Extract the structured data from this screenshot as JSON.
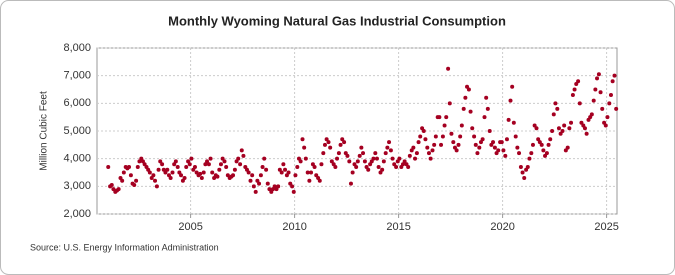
{
  "chart_data": {
    "type": "scatter",
    "title": "Monthly Wyoming Natural Gas Industrial Consumption",
    "y_label": "Million Cubic Feet",
    "source": "Source: U.S. Energy Information Administration",
    "color": "#a50021",
    "grid": true,
    "xlim": [
      2000.5,
      2025.5
    ],
    "xticks": [
      2005,
      2010,
      2015,
      2020,
      2025
    ],
    "ylim": [
      2000,
      8000
    ],
    "yticks": [
      {
        "value": 2000,
        "label": "2,000"
      },
      {
        "value": 3000,
        "label": "3,000"
      },
      {
        "value": 4000,
        "label": "4,000"
      },
      {
        "value": 5000,
        "label": "5,000"
      },
      {
        "value": 6000,
        "label": "6,000"
      },
      {
        "value": 7000,
        "label": "7,000"
      },
      {
        "value": 8000,
        "label": "8,000"
      }
    ],
    "x": [
      2001.04,
      2001.13,
      2001.21,
      2001.29,
      2001.38,
      2001.46,
      2001.54,
      2001.63,
      2001.71,
      2001.79,
      2001.88,
      2001.96,
      2002.04,
      2002.13,
      2002.21,
      2002.29,
      2002.38,
      2002.46,
      2002.54,
      2002.63,
      2002.71,
      2002.79,
      2002.88,
      2002.96,
      2003.04,
      2003.13,
      2003.21,
      2003.29,
      2003.38,
      2003.46,
      2003.54,
      2003.63,
      2003.71,
      2003.79,
      2003.88,
      2003.96,
      2004.04,
      2004.13,
      2004.21,
      2004.29,
      2004.38,
      2004.46,
      2004.54,
      2004.63,
      2004.71,
      2004.79,
      2004.88,
      2004.96,
      2005.04,
      2005.13,
      2005.21,
      2005.29,
      2005.38,
      2005.46,
      2005.54,
      2005.63,
      2005.71,
      2005.79,
      2005.88,
      2005.96,
      2006.04,
      2006.13,
      2006.21,
      2006.29,
      2006.38,
      2006.46,
      2006.54,
      2006.63,
      2006.71,
      2006.79,
      2006.88,
      2006.96,
      2007.04,
      2007.13,
      2007.21,
      2007.29,
      2007.38,
      2007.46,
      2007.54,
      2007.63,
      2007.71,
      2007.79,
      2007.88,
      2007.96,
      2008.04,
      2008.13,
      2008.21,
      2008.29,
      2008.38,
      2008.46,
      2008.54,
      2008.63,
      2008.71,
      2008.79,
      2008.88,
      2008.96,
      2009.04,
      2009.13,
      2009.21,
      2009.29,
      2009.38,
      2009.46,
      2009.54,
      2009.63,
      2009.71,
      2009.79,
      2009.88,
      2009.96,
      2010.04,
      2010.13,
      2010.21,
      2010.29,
      2010.38,
      2010.46,
      2010.54,
      2010.63,
      2010.71,
      2010.79,
      2010.88,
      2010.96,
      2011.04,
      2011.13,
      2011.21,
      2011.29,
      2011.38,
      2011.46,
      2011.54,
      2011.63,
      2011.71,
      2011.79,
      2011.88,
      2011.96,
      2012.04,
      2012.13,
      2012.21,
      2012.29,
      2012.38,
      2012.46,
      2012.54,
      2012.63,
      2012.71,
      2012.79,
      2012.88,
      2012.96,
      2013.04,
      2013.13,
      2013.21,
      2013.29,
      2013.38,
      2013.46,
      2013.54,
      2013.63,
      2013.71,
      2013.79,
      2013.88,
      2013.96,
      2014.04,
      2014.13,
      2014.21,
      2014.29,
      2014.38,
      2014.46,
      2014.54,
      2014.63,
      2014.71,
      2014.79,
      2014.88,
      2014.96,
      2015.04,
      2015.13,
      2015.21,
      2015.29,
      2015.38,
      2015.46,
      2015.54,
      2015.63,
      2015.71,
      2015.79,
      2015.88,
      2015.96,
      2016.04,
      2016.13,
      2016.21,
      2016.29,
      2016.38,
      2016.46,
      2016.54,
      2016.63,
      2016.71,
      2016.79,
      2016.88,
      2016.96,
      2017.04,
      2017.13,
      2017.21,
      2017.29,
      2017.38,
      2017.46,
      2017.54,
      2017.63,
      2017.71,
      2017.79,
      2017.88,
      2017.96,
      2018.04,
      2018.13,
      2018.21,
      2018.29,
      2018.38,
      2018.46,
      2018.54,
      2018.63,
      2018.71,
      2018.79,
      2018.88,
      2018.96,
      2019.04,
      2019.13,
      2019.21,
      2019.29,
      2019.38,
      2019.46,
      2019.54,
      2019.63,
      2019.71,
      2019.79,
      2019.88,
      2019.96,
      2020.04,
      2020.13,
      2020.21,
      2020.29,
      2020.38,
      2020.46,
      2020.54,
      2020.63,
      2020.71,
      2020.79,
      2020.88,
      2020.96,
      2021.04,
      2021.13,
      2021.21,
      2021.29,
      2021.38,
      2021.46,
      2021.54,
      2021.63,
      2021.71,
      2021.79,
      2021.88,
      2021.96,
      2022.04,
      2022.13,
      2022.21,
      2022.29,
      2022.38,
      2022.46,
      2022.54,
      2022.63,
      2022.71,
      2022.79,
      2022.88,
      2022.96,
      2023.04,
      2023.13,
      2023.21,
      2023.29,
      2023.38,
      2023.46,
      2023.54,
      2023.63,
      2023.71,
      2023.79,
      2023.88,
      2023.96,
      2024.04,
      2024.13,
      2024.21,
      2024.29,
      2024.38,
      2024.46,
      2024.54,
      2024.63,
      2024.71,
      2024.79,
      2024.88,
      2024.96,
      2025.04,
      2025.13,
      2025.21,
      2025.29,
      2025.38,
      2025.46
    ],
    "values": [
      3700,
      3000,
      3050,
      2900,
      2800,
      2850,
      2900,
      3300,
      3200,
      3500,
      3700,
      3650,
      3700,
      3400,
      3100,
      3050,
      3200,
      3700,
      3900,
      4000,
      3900,
      3800,
      3700,
      3600,
      3500,
      3300,
      3400,
      3200,
      3000,
      3600,
      3900,
      3800,
      3600,
      3500,
      3600,
      3400,
      3300,
      3500,
      3800,
      3900,
      3700,
      3500,
      3400,
      3200,
      3300,
      3700,
      3900,
      3800,
      4000,
      3600,
      3700,
      3500,
      3400,
      3450,
      3300,
      3500,
      3800,
      3900,
      3800,
      4000,
      3500,
      3300,
      3400,
      3350,
      3600,
      3800,
      4000,
      3900,
      3700,
      3400,
      3300,
      3350,
      3400,
      3600,
      3900,
      4000,
      3800,
      4300,
      4100,
      3700,
      3600,
      3500,
      3200,
      3400,
      3000,
      2800,
      3200,
      3100,
      3400,
      3700,
      4000,
      3600,
      3100,
      2900,
      2800,
      2900,
      3000,
      2900,
      3000,
      3600,
      3500,
      3800,
      3600,
      3400,
      3500,
      3100,
      3000,
      2800,
      3400,
      3700,
      4000,
      3900,
      4700,
      4400,
      4000,
      3500,
      3200,
      3500,
      3800,
      3700,
      3400,
      3300,
      3200,
      3800,
      4200,
      4500,
      4700,
      4600,
      4400,
      3900,
      3800,
      3700,
      4000,
      4200,
      4500,
      4700,
      4600,
      4200,
      4100,
      3900,
      3100,
      3500,
      3800,
      3700,
      3900,
      4100,
      4400,
      4200,
      3900,
      3700,
      3600,
      3800,
      3900,
      4000,
      4200,
      4000,
      3700,
      3500,
      3600,
      3900,
      4200,
      4400,
      4600,
      4300,
      4000,
      3800,
      3700,
      3900,
      4000,
      3700,
      3800,
      3900,
      3800,
      3700,
      4100,
      4300,
      4400,
      4000,
      4200,
      4600,
      4800,
      5100,
      5000,
      4700,
      4400,
      4200,
      4000,
      4300,
      4500,
      4800,
      5500,
      5500,
      4500,
      4800,
      5200,
      5500,
      7250,
      6000,
      4900,
      4600,
      4400,
      4300,
      4500,
      4800,
      5200,
      5800,
      6200,
      6600,
      6500,
      5700,
      5100,
      4800,
      4500,
      4200,
      4400,
      4600,
      4700,
      5500,
      6200,
      5800,
      5000,
      4500,
      4600,
      4400,
      4200,
      4300,
      4600,
      4600,
      4300,
      4100,
      4700,
      5400,
      6100,
      6600,
      5300,
      4800,
      4400,
      4200,
      3700,
      3500,
      3300,
      3600,
      3700,
      4000,
      4200,
      4500,
      5200,
      5100,
      4700,
      4600,
      4500,
      4300,
      4100,
      4200,
      4500,
      4700,
      5000,
      5600,
      6000,
      5800,
      5100,
      4900,
      5000,
      5200,
      4300,
      4400,
      5100,
      5300,
      6300,
      6500,
      6700,
      6800,
      6000,
      5300,
      5200,
      5100,
      4900,
      5400,
      5500,
      5600,
      6100,
      6500,
      6900,
      7050,
      6400,
      5800,
      5300,
      5200,
      5500,
      6000,
      6300,
      6800,
      7000,
      5800
    ]
  }
}
